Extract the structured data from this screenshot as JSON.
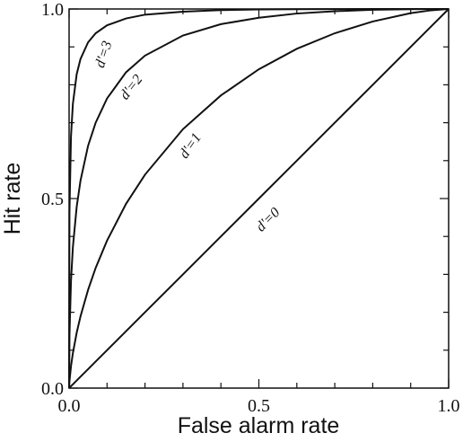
{
  "chart_data": {
    "type": "line",
    "xlabel": "False alarm rate",
    "ylabel": "Hit rate",
    "x": [
      0,
      0.001,
      0.005,
      0.01,
      0.02,
      0.03,
      0.05,
      0.07,
      0.1,
      0.15,
      0.2,
      0.3,
      0.4,
      0.5,
      0.6,
      0.7,
      0.8,
      0.9,
      0.95,
      1
    ],
    "series": [
      {
        "name": "d'=3",
        "color": "#111111",
        "values": [
          0,
          0.464,
          0.664,
          0.75,
          0.828,
          0.868,
          0.912,
          0.936,
          0.957,
          0.975,
          0.985,
          0.993,
          0.997,
          0.9987,
          0.9995,
          0.9998,
          0.9999,
          1,
          1,
          1
        ]
      },
      {
        "name": "d'=2",
        "color": "#111111",
        "values": [
          0,
          0.138,
          0.282,
          0.372,
          0.478,
          0.547,
          0.639,
          0.7,
          0.764,
          0.833,
          0.877,
          0.93,
          0.96,
          0.977,
          0.988,
          0.994,
          0.998,
          0.9995,
          0.9999,
          1
        ]
      },
      {
        "name": "d'=1",
        "color": "#111111",
        "values": [
          0,
          0.0183,
          0.0575,
          0.0924,
          0.146,
          0.189,
          0.259,
          0.317,
          0.389,
          0.486,
          0.563,
          0.683,
          0.772,
          0.841,
          0.895,
          0.936,
          0.967,
          0.989,
          0.996,
          1
        ]
      },
      {
        "name": "d'=0",
        "color": "#111111",
        "values": [
          0,
          0.001,
          0.005,
          0.01,
          0.02,
          0.03,
          0.05,
          0.07,
          0.1,
          0.15,
          0.2,
          0.3,
          0.4,
          0.5,
          0.6,
          0.7,
          0.8,
          0.9,
          0.95,
          1
        ]
      }
    ],
    "xlim": [
      0,
      1
    ],
    "ylim": [
      0,
      1
    ],
    "xticks": [
      {
        "value": 0,
        "label": "0.0"
      },
      {
        "value": 0.5,
        "label": "0.5"
      },
      {
        "value": 1,
        "label": "1.0"
      }
    ],
    "yticks": [
      {
        "value": 0,
        "label": "0.0"
      },
      {
        "value": 0.5,
        "label": "0.5"
      },
      {
        "value": 1,
        "label": "1.0"
      }
    ],
    "minor_xticks": [
      0.1,
      0.2,
      0.3,
      0.4,
      0.6,
      0.7,
      0.8,
      0.9
    ],
    "minor_yticks": [
      0.1,
      0.2,
      0.3,
      0.4,
      0.6,
      0.7,
      0.8,
      0.9
    ],
    "grid": false
  }
}
